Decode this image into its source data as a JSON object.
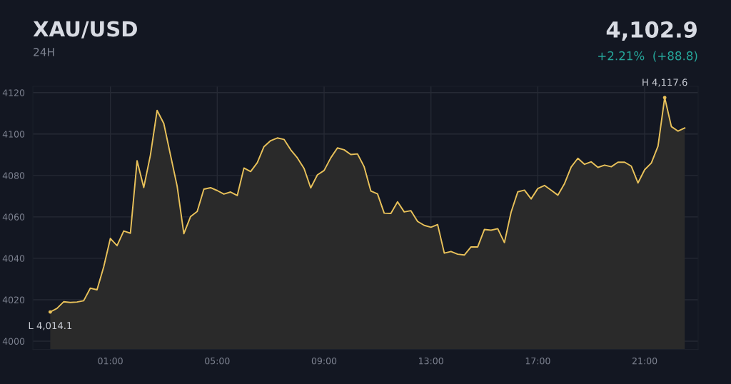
{
  "chart_data": {
    "type": "area",
    "title": "XAU/USD",
    "subtitle": "24H",
    "annotations": [
      "4,102.9",
      "+2.21%  (+88.8)",
      {
        "text": "H 4,117.6",
        "x": 21.75,
        "y": 4117.6
      },
      {
        "text": "L 4,014.1",
        "x": -1.25,
        "y": 4014.1
      }
    ],
    "x": [
      -1.25,
      -1.0,
      -0.75,
      -0.5,
      -0.25,
      0.0,
      0.25,
      0.5,
      0.75,
      1.0,
      1.25,
      1.5,
      1.75,
      2.0,
      2.25,
      2.5,
      2.75,
      3.0,
      3.25,
      3.5,
      3.75,
      4.0,
      4.25,
      4.5,
      4.75,
      5.0,
      5.25,
      5.5,
      5.75,
      6.0,
      6.25,
      6.5,
      6.75,
      7.0,
      7.25,
      7.5,
      7.75,
      8.0,
      8.25,
      8.5,
      8.75,
      9.0,
      9.25,
      9.5,
      9.75,
      10.0,
      10.25,
      10.5,
      10.75,
      11.0,
      11.25,
      11.5,
      11.75,
      12.0,
      12.25,
      12.5,
      12.75,
      13.0,
      13.25,
      13.5,
      13.75,
      14.0,
      14.25,
      14.5,
      14.75,
      15.0,
      15.25,
      15.5,
      15.75,
      16.0,
      16.25,
      16.5,
      16.75,
      17.0,
      17.25,
      17.5,
      17.75,
      18.0,
      18.25,
      18.5,
      18.75,
      19.0,
      19.25,
      19.5,
      19.75,
      20.0,
      20.25,
      20.5,
      20.75,
      21.0,
      21.25,
      21.5,
      21.75,
      22.0,
      22.25,
      22.5
    ],
    "series": [
      {
        "color": "#e8c15a",
        "values": [
          4014.1,
          4015.8,
          4019.0,
          4018.7,
          4018.9,
          4019.5,
          4025.6,
          4024.8,
          4035.8,
          4049.6,
          4046.1,
          4053.2,
          4052.1,
          4087.1,
          4074.2,
          4089.9,
          4111.4,
          4105.1,
          4089.9,
          4074.8,
          4051.9,
          4060.1,
          4062.6,
          4073.4,
          4074.1,
          4072.7,
          4071.0,
          4072.0,
          4070.3,
          4083.6,
          4081.9,
          4086.2,
          4093.9,
          4096.8,
          4098.1,
          4097.4,
          4092.4,
          4088.5,
          4083.4,
          4074.0,
          4080.3,
          4082.4,
          4088.5,
          4093.3,
          4092.4,
          4090.1,
          4090.4,
          4084.2,
          4072.5,
          4071.1,
          4061.8,
          4061.7,
          4067.3,
          4062.4,
          4063.0,
          4057.8,
          4055.9,
          4055.0,
          4056.3,
          4042.5,
          4043.3,
          4042.0,
          4041.6,
          4045.5,
          4045.5,
          4053.9,
          4053.6,
          4054.3,
          4047.6,
          4062.3,
          4072.1,
          4072.9,
          4068.7,
          4073.7,
          4075.2,
          4072.9,
          4070.5,
          4076.1,
          4084.1,
          4088.3,
          4085.4,
          4086.6,
          4083.9,
          4085.0,
          4084.2,
          4086.4,
          4086.4,
          4084.5,
          4076.4,
          4082.8,
          4086.0,
          4094.2,
          4117.6,
          4103.6,
          4101.4,
          4102.9
        ]
      }
    ],
    "xlim": [
      -1.9,
      23.0
    ],
    "ylim": [
      3996,
      4123
    ],
    "xticks": [
      {
        "value": 1,
        "label": "01:00"
      },
      {
        "value": 5,
        "label": "05:00"
      },
      {
        "value": 9,
        "label": "09:00"
      },
      {
        "value": 13,
        "label": "13:00"
      },
      {
        "value": 17,
        "label": "17:00"
      },
      {
        "value": 21,
        "label": "21:00"
      }
    ],
    "yticks": [
      4000,
      4020,
      4040,
      4060,
      4080,
      4100,
      4120
    ],
    "grid": true,
    "legend": false
  }
}
